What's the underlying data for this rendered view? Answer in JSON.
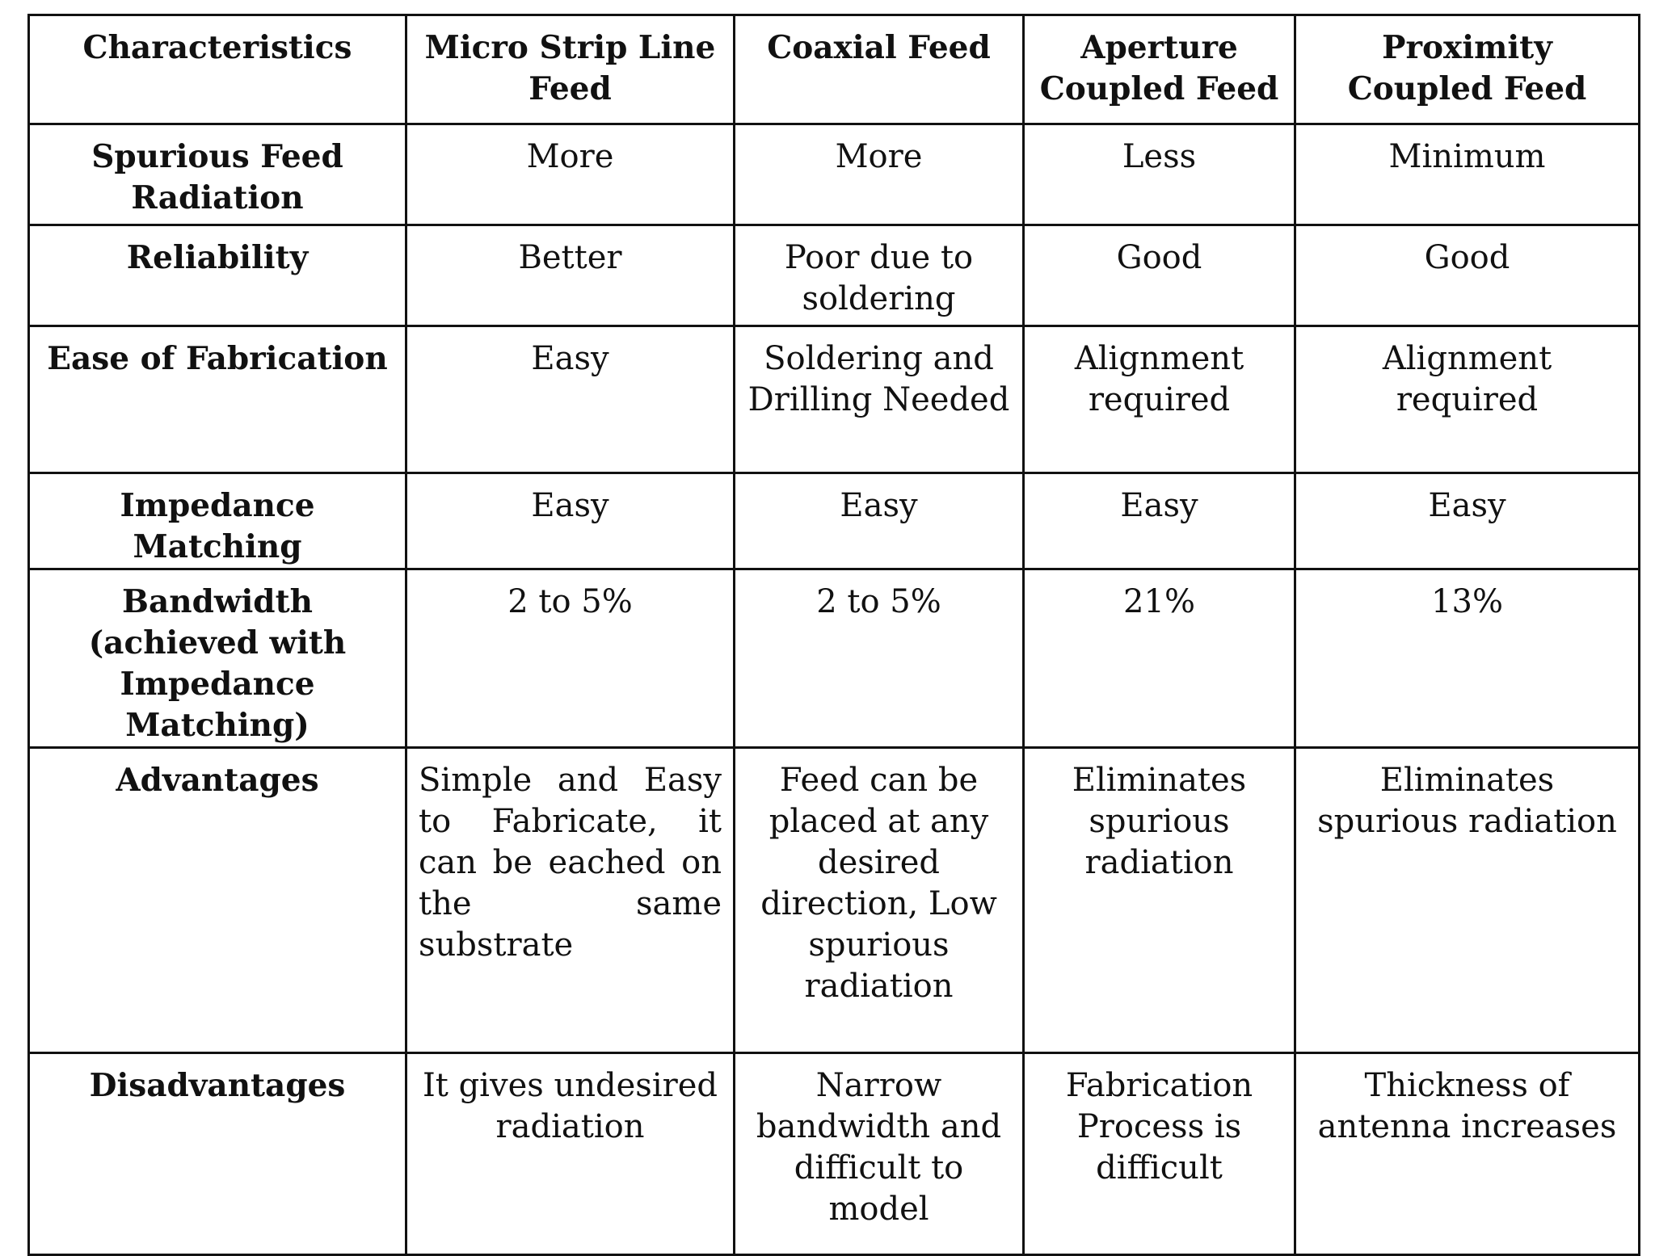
{
  "table": {
    "headers": [
      "Characteristics",
      "Micro Strip Line Feed",
      "Coaxial Feed",
      "Aperture Coupled Feed",
      "Proximity Coupled Feed"
    ],
    "rows": [
      {
        "label": "Spurious Feed Radiation",
        "cells": [
          "More",
          "More",
          "Less",
          "Minimum"
        ]
      },
      {
        "label": "Reliability",
        "cells": [
          "Better",
          "Poor due to soldering",
          "Good",
          "Good"
        ]
      },
      {
        "label": "Ease of Fabrication",
        "cells": [
          "Easy",
          "Soldering and Drilling Needed",
          "Alignment required",
          "Alignment required"
        ]
      },
      {
        "label": "Impedance Matching",
        "cells": [
          "Easy",
          "Easy",
          "Easy",
          "Easy"
        ]
      },
      {
        "label": "Bandwidth (achieved with Impedance Matching)",
        "cells": [
          "2 to 5%",
          "2 to 5%",
          "21%",
          "13%"
        ]
      },
      {
        "label": "Advantages",
        "cells": [
          "Simple and Easy to Fabricate, it can be eached on the same substrate",
          "Feed can be placed at any desired direction, Low spurious radiation",
          "Eliminates spurious radiation",
          "Eliminates spurious radiation"
        ]
      },
      {
        "label": "Disadvantages",
        "cells": [
          "It gives undesired radiation",
          "Narrow bandwidth and difficult to model",
          "Fabrication Process is difficult",
          "Thickness of antenna increases"
        ]
      }
    ]
  }
}
